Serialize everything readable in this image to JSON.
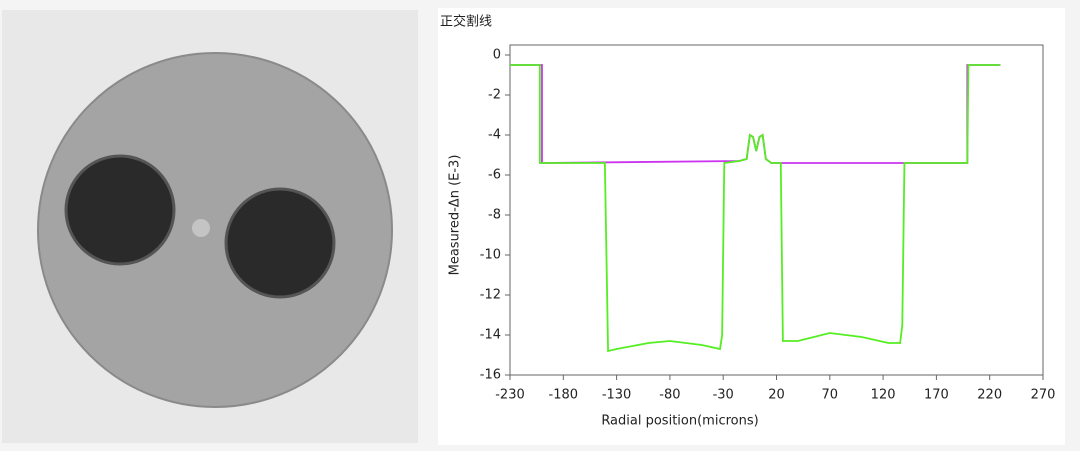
{
  "chart_data": {
    "type": "line",
    "title": "正交割线",
    "xlabel": "Radial position(microns)",
    "ylabel": "Measured-Δn (E-3)",
    "xlim": [
      -230,
      270
    ],
    "xticks": [
      -230,
      -180,
      -130,
      -80,
      -30,
      20,
      70,
      120,
      170,
      220,
      270
    ],
    "ylim": [
      -16,
      0.5
    ],
    "yticks": [
      0,
      -2,
      -4,
      -6,
      -8,
      -10,
      -12,
      -14,
      -16
    ],
    "series": [
      {
        "color": "#cc33ee",
        "x": [
          -230,
          -200,
          -200,
          -15,
          -8,
          -5,
          -2,
          1,
          4,
          7,
          10,
          15,
          199,
          199,
          230
        ],
        "values": [
          -0.5,
          -0.5,
          -5.4,
          -5.3,
          -5.2,
          -4,
          -4.1,
          -4.8,
          -4.1,
          -4,
          -5.2,
          -5.4,
          -5.4,
          -0.5,
          -0.5
        ]
      },
      {
        "color": "#55ee22",
        "x": [
          -230,
          -202,
          -202,
          -141,
          -138,
          -130,
          -100,
          -80,
          -50,
          -33,
          -31,
          -29,
          -15,
          -8,
          -5,
          -2,
          1,
          4,
          7,
          10,
          15,
          24,
          26,
          40,
          70,
          100,
          125,
          136,
          138,
          140,
          199,
          200,
          230
        ],
        "values": [
          -0.5,
          -0.5,
          -5.4,
          -5.4,
          -14.8,
          -14.7,
          -14.4,
          -14.3,
          -14.5,
          -14.7,
          -14,
          -5.4,
          -5.3,
          -5.2,
          -4,
          -4.1,
          -4.8,
          -4.1,
          -4,
          -5.2,
          -5.4,
          -5.4,
          -14.3,
          -14.3,
          -13.9,
          -14.1,
          -14.4,
          -14.4,
          -13.5,
          -5.4,
          -5.4,
          -0.5,
          -0.5
        ]
      }
    ]
  }
}
